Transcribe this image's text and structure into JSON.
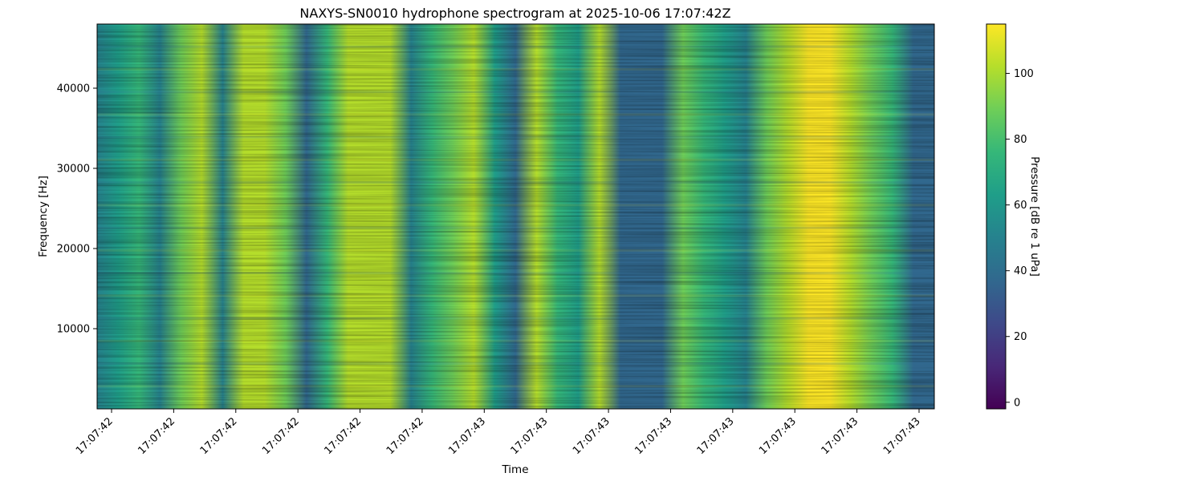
{
  "chart_data": {
    "type": "heatmap",
    "title": "NAXYS-SN0010 hydrophone spectrogram at 2025-10-06 17:07:42Z",
    "xlabel": "Time",
    "ylabel": "Frequency [Hz]",
    "colorbar_label": "Pressure [dB re 1 uPa]",
    "colormap": "viridis",
    "color_range": [
      -2,
      115
    ],
    "colorbar_ticks": [
      0,
      20,
      40,
      60,
      80,
      100
    ],
    "ylim": [
      0,
      48000
    ],
    "y_ticks": [
      10000,
      20000,
      30000,
      40000
    ],
    "x_tick_labels": [
      "17:07:42",
      "17:07:42",
      "17:07:42",
      "17:07:42",
      "17:07:42",
      "17:07:42",
      "17:07:43",
      "17:07:43",
      "17:07:43",
      "17:07:43",
      "17:07:43",
      "17:07:43",
      "17:07:43",
      "17:07:43"
    ],
    "time_bands": [
      {
        "level": 45
      },
      {
        "level": 68
      },
      {
        "level": 72
      },
      {
        "level": 48
      },
      {
        "level": 88
      },
      {
        "level": 98
      },
      {
        "level": 45
      },
      {
        "level": 100
      },
      {
        "level": 105
      },
      {
        "level": 90
      },
      {
        "level": 40
      },
      {
        "level": 70
      },
      {
        "level": 100
      },
      {
        "level": 105
      },
      {
        "level": 96
      },
      {
        "level": 50
      },
      {
        "level": 70
      },
      {
        "level": 95
      },
      {
        "level": 98
      },
      {
        "level": 58
      },
      {
        "level": 40
      },
      {
        "level": 100
      },
      {
        "level": 82
      },
      {
        "level": 60
      },
      {
        "level": 102
      },
      {
        "level": 40
      },
      {
        "level": 38
      },
      {
        "level": 42
      },
      {
        "level": 90
      },
      {
        "level": 80
      },
      {
        "level": 60
      },
      {
        "level": 45
      },
      {
        "level": 92
      },
      {
        "level": 108
      },
      {
        "level": 110
      },
      {
        "level": 112
      },
      {
        "level": 100
      },
      {
        "level": 95
      },
      {
        "level": 80
      },
      {
        "level": 40
      },
      {
        "level": 38
      }
    ]
  },
  "colors": {
    "viridis": [
      "#440154",
      "#482878",
      "#3e4989",
      "#31688e",
      "#26828e",
      "#1f9e89",
      "#35b779",
      "#6ece58",
      "#b5de2b",
      "#fde725"
    ]
  }
}
